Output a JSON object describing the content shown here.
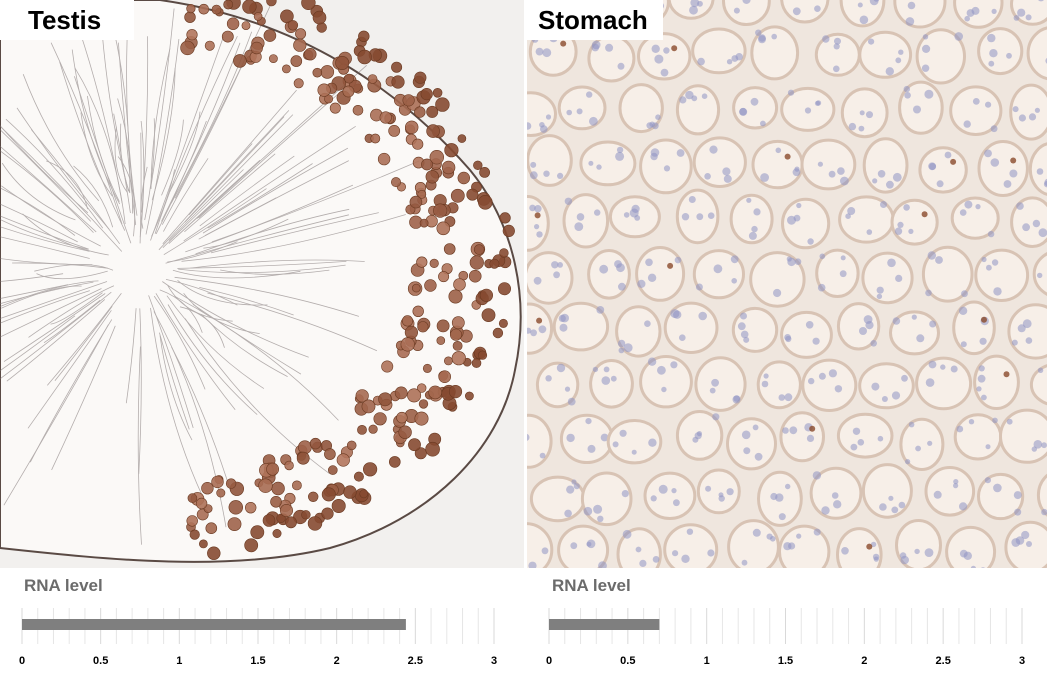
{
  "panels": [
    {
      "tissue": "Testis"
    },
    {
      "tissue": "Stomach"
    }
  ],
  "colors": {
    "bar": "#7f7f7f",
    "grid": "#e6e6e6",
    "tick_label": "#000000",
    "nucleus_brown": "#8a4a2a",
    "nucleus_blue": "#8f93c2"
  },
  "chart_data": [
    {
      "type": "bar",
      "title": "RNA level",
      "categories": [
        "Testis"
      ],
      "values": [
        2.44
      ],
      "xlim": [
        0,
        3
      ],
      "xticks": [
        "0",
        "0.5",
        "1",
        "1.5",
        "2",
        "2.5",
        "3"
      ],
      "grid": true,
      "orientation": "horizontal"
    },
    {
      "type": "bar",
      "title": "RNA level",
      "categories": [
        "Stomach"
      ],
      "values": [
        0.7
      ],
      "xlim": [
        0,
        3
      ],
      "xticks": [
        "0",
        "0.5",
        "1",
        "1.5",
        "2",
        "2.5",
        "3"
      ],
      "grid": true,
      "orientation": "horizontal"
    }
  ]
}
